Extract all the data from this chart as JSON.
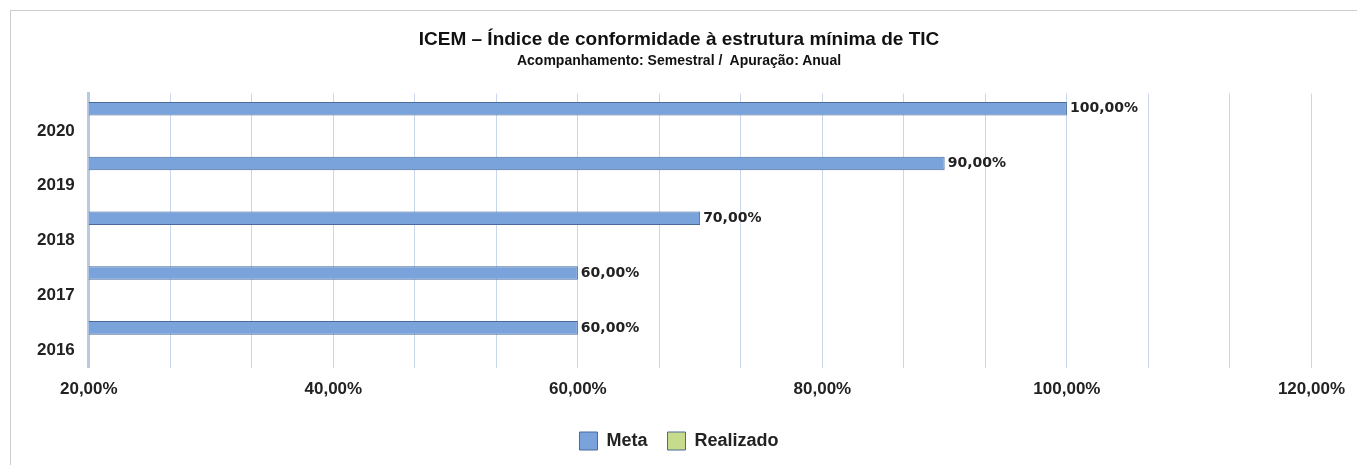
{
  "chart_data": {
    "type": "bar",
    "orientation": "horizontal",
    "title": "ICEM – Índice de conformidade à estrutura mínima de TIC",
    "subtitle": "Acompanhamento: Semestral /  Apuração: Anual",
    "categories": [
      "2020",
      "2019",
      "2018",
      "2017",
      "2016"
    ],
    "series": [
      {
        "name": "Meta",
        "color": "#7ba3db",
        "values": [
          100,
          90,
          70,
          60,
          60
        ],
        "value_labels": [
          "100,00%",
          "90,00%",
          "70,00%",
          "60,00%",
          "60,00%"
        ]
      },
      {
        "name": "Realizado",
        "color": "#c6dc8c",
        "values": [
          null,
          null,
          null,
          null,
          null
        ]
      }
    ],
    "xlim": [
      20,
      120
    ],
    "xticks": [
      {
        "value": 20,
        "label": "20,00%"
      },
      {
        "value": 26.67,
        "label": null
      },
      {
        "value": 33.33,
        "label": null
      },
      {
        "value": 40,
        "label": "40,00%"
      },
      {
        "value": 46.67,
        "label": null
      },
      {
        "value": 53.33,
        "label": null
      },
      {
        "value": 60,
        "label": "60,00%"
      },
      {
        "value": 66.67,
        "label": null
      },
      {
        "value": 73.33,
        "label": null
      },
      {
        "value": 80,
        "label": "80,00%"
      },
      {
        "value": 86.67,
        "label": null
      },
      {
        "value": 93.33,
        "label": null
      },
      {
        "value": 100,
        "label": "100,00%"
      },
      {
        "value": 106.67,
        "label": null
      },
      {
        "value": 113.33,
        "label": null
      },
      {
        "value": 120,
        "label": "120,00%"
      }
    ],
    "grid": "x",
    "legend": "bottom"
  }
}
